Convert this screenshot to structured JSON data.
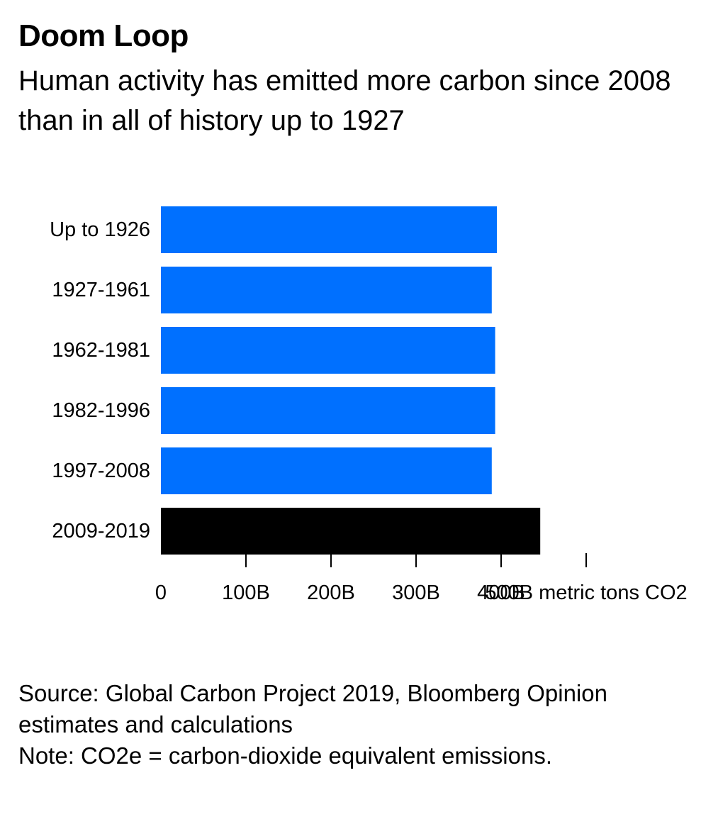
{
  "header": {
    "title": "Doom Loop",
    "subtitle": "Human activity has emitted more carbon since 2008 than in all of history up to 1927"
  },
  "chart_data": {
    "type": "bar",
    "orientation": "horizontal",
    "categories": [
      "Up to 1926",
      "1927-1961",
      "1962-1981",
      "1982-1996",
      "1997-2008",
      "2009-2019"
    ],
    "values": [
      395,
      389,
      393,
      393,
      389,
      446
    ],
    "bar_colors": [
      "#0070ff",
      "#0070ff",
      "#0070ff",
      "#0070ff",
      "#0070ff",
      "#000000"
    ],
    "x_ticks": [
      {
        "value": 0,
        "label": "0"
      },
      {
        "value": 100,
        "label": "100B"
      },
      {
        "value": 200,
        "label": "200B"
      },
      {
        "value": 300,
        "label": "300B"
      },
      {
        "value": 400,
        "label": "400B"
      },
      {
        "value": 500,
        "label": "500B metric tons CO2"
      }
    ],
    "xlim": [
      0,
      500
    ],
    "value_unit": "billion metric tons CO2",
    "grid": false,
    "legend": "none"
  },
  "footer": {
    "source": "Source: Global Carbon Project 2019, Bloomberg Opinion estimates and calculations",
    "note": "Note: CO2e = carbon-dioxide equivalent emissions."
  }
}
